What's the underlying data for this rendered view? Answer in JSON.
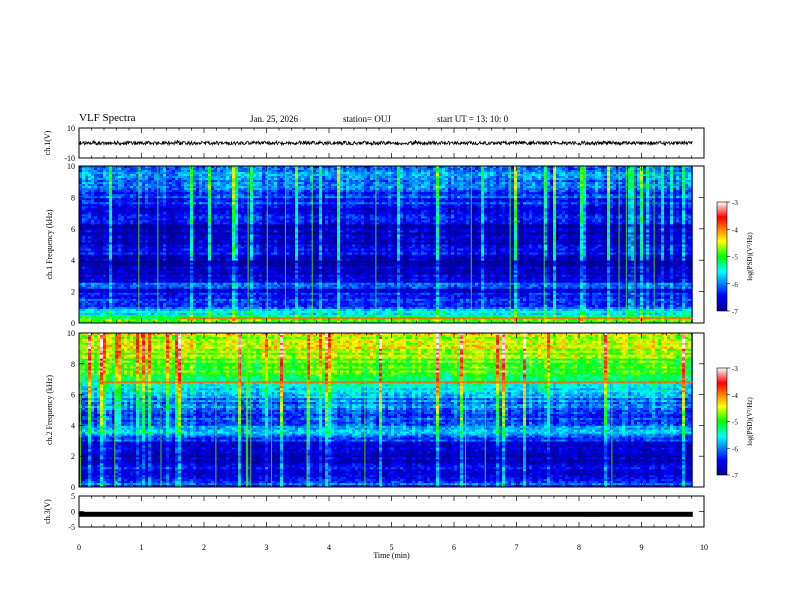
{
  "header": {
    "title": "VLF Spectra",
    "date": "Jan. 25, 2026",
    "station": "station= OUJ",
    "start": "start  UT  =   13: 10: 0"
  },
  "chart_data": [
    {
      "type": "line",
      "panel": "ch1-waveform",
      "ylabel": "ch.1(V)",
      "ylim": [
        -10,
        10
      ],
      "yticks": [
        "10",
        "-10"
      ],
      "xlim": [
        0,
        10
      ],
      "trace_end_min": 9.82,
      "trace_mean": 0,
      "trace_amplitude": 1.2
    },
    {
      "type": "heatmap",
      "panel": "ch1-spectrogram",
      "ylabel": "ch.1 Frequency (kHz)",
      "ylim": [
        0,
        10
      ],
      "yticks": [
        "0",
        "2",
        "4",
        "6",
        "8",
        "10"
      ],
      "xlim": [
        0,
        10
      ],
      "data_end_min": 9.82,
      "colorbar": {
        "label": "log(PSD)(V²/Hz)",
        "range": [
          -7,
          -3
        ],
        "ticks": [
          "-3",
          "-4",
          "-5",
          "-6",
          "-7"
        ]
      },
      "hot_line_khz": 0.3,
      "level_profile_khz": [
        [
          0,
          -4.8
        ],
        [
          0.5,
          -5.4
        ],
        [
          1,
          -6.2
        ],
        [
          2,
          -6.6
        ],
        [
          2.5,
          -6.3
        ],
        [
          3.2,
          -6.8
        ],
        [
          4,
          -6.9
        ],
        [
          4.6,
          -6.5
        ],
        [
          5,
          -6.8
        ],
        [
          5.6,
          -6.9
        ],
        [
          6.5,
          -6.6
        ],
        [
          7.5,
          -6.4
        ],
        [
          8.5,
          -6.2
        ],
        [
          10,
          -6.0
        ]
      ]
    },
    {
      "type": "heatmap",
      "panel": "ch2-spectrogram",
      "ylabel": "ch.2 Frequency (kHz)",
      "ylim": [
        0,
        10
      ],
      "yticks": [
        "0",
        "2",
        "4",
        "6",
        "8",
        "10"
      ],
      "xlim": [
        0,
        10
      ],
      "data_end_min": 9.82,
      "colorbar": {
        "label": "log(PSD)(V²/Hz)",
        "range": [
          -7,
          -3
        ],
        "ticks": [
          "-3",
          "-4",
          "-5",
          "-6",
          "-7"
        ]
      },
      "hot_line_khz": 6.8,
      "level_profile_khz": [
        [
          0,
          -6.2
        ],
        [
          1,
          -6.6
        ],
        [
          2,
          -6.7
        ],
        [
          3,
          -6.4
        ],
        [
          3.6,
          -5.6
        ],
        [
          4.2,
          -6.3
        ],
        [
          5,
          -6.2
        ],
        [
          6,
          -5.8
        ],
        [
          6.6,
          -5.3
        ],
        [
          7.2,
          -5.0
        ],
        [
          8,
          -4.9
        ],
        [
          9,
          -4.6
        ],
        [
          10,
          -4.5
        ]
      ]
    },
    {
      "type": "line",
      "panel": "ch3-waveform",
      "ylabel": "ch.3(V)",
      "ylim": [
        -5,
        5
      ],
      "yticks": [
        "5",
        "0",
        "-5"
      ],
      "xlim": [
        0,
        10
      ],
      "trace_end_min": 9.82,
      "trace_mean": -0.9,
      "trace_amplitude": 0.1
    }
  ],
  "xaxis": {
    "label": "Time  (min)",
    "ticks": [
      "0",
      "1",
      "2",
      "3",
      "4",
      "5",
      "6",
      "7",
      "8",
      "9",
      "10"
    ]
  }
}
